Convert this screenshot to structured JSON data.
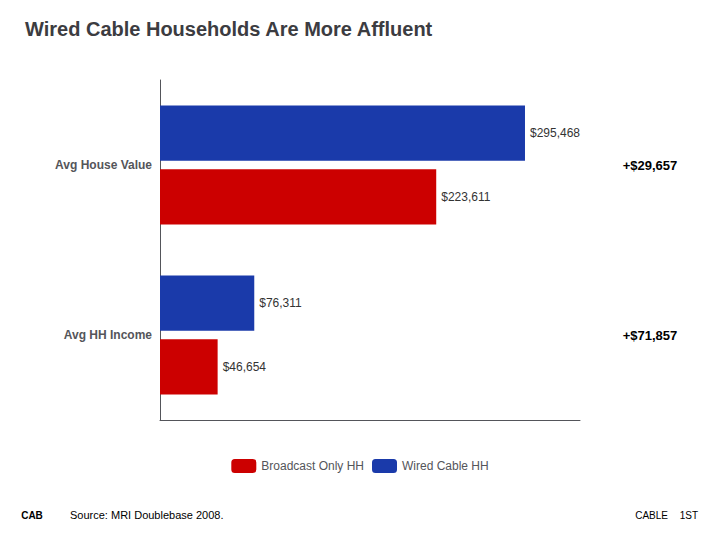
{
  "chart_data": {
    "type": "bar",
    "orientation": "horizontal",
    "title": "Wired Cable Households Are More Affluent",
    "categories": [
      "Avg House Value",
      "Avg HH Income"
    ],
    "series": [
      {
        "name": "Broadcast Only HH",
        "color": "#cc0000",
        "values": [
          223611,
          46654
        ],
        "value_labels": [
          "$223,611",
          "$46,654"
        ]
      },
      {
        "name": "Wired Cable HH",
        "color": "#1a3aaa",
        "values": [
          295468,
          76311
        ],
        "value_labels": [
          "$295,468",
          "$76,311"
        ]
      }
    ],
    "xlim": [
      0,
      340000
    ],
    "tick_labels": "y",
    "data_labels": true,
    "grid": false,
    "legend": "bottom",
    "annotations": [
      "+$29,657",
      "+$71,857"
    ],
    "footer": [
      "CAB",
      "Source: MRI Doublebase 2008.",
      "CABLE",
      "1ST"
    ]
  }
}
